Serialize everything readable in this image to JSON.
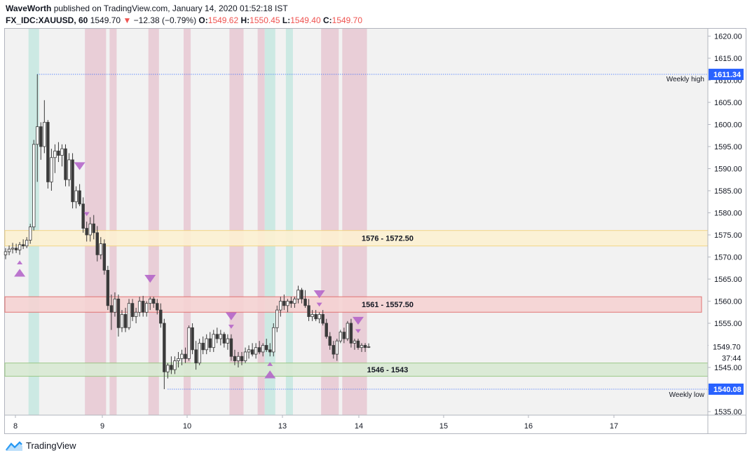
{
  "header": {
    "author": "WaveWorth",
    "published_text": "published on TradingView.com, January 14, 2020 01:52:18 IST",
    "symbol": "FX_IDC:XAUUSD, 60",
    "last_price": "1549.70",
    "change_arrow": "▼",
    "change": "−12.38 (−0.79%)",
    "o_label": "O:",
    "o_value": "1549.62",
    "h_label": "H:",
    "h_value": "1550.45",
    "l_label": "L:",
    "l_value": "1549.40",
    "c_label": "C:",
    "c_value": "1549.70"
  },
  "footer": {
    "brand": "TradingView"
  },
  "colors": {
    "candle": "#3a3a3a",
    "pink_band": "#e8c8d2",
    "teal_band": "#c6e8e0",
    "zone_yellow_fill": "#fdf1d2",
    "zone_yellow_border": "#f3d27a",
    "zone_red_fill": "#f6d3d3",
    "zone_red_border": "#e06666",
    "zone_green_fill": "#d9ead3",
    "zone_green_border": "#93c47d",
    "marker": "#b25fc8",
    "level_line": "#2962ff",
    "price_badge_blue": "#2962ff",
    "price_badge_dark": "#131722"
  },
  "chart_data": {
    "type": "candlestick",
    "symbol": "FX_IDC:XAUUSD",
    "interval": "60",
    "x_tick_labels": [
      "8",
      "9",
      "10",
      "13",
      "14",
      "15",
      "16",
      "17"
    ],
    "y_ticks": [
      1535,
      1540,
      1545,
      1550,
      1555,
      1560,
      1565,
      1570,
      1575,
      1580,
      1585,
      1590,
      1595,
      1600,
      1605,
      1610,
      1615,
      1620
    ],
    "y_tick_labels": [
      "1535.00",
      "",
      "1545.00",
      "",
      "1555.00",
      "1560.00",
      "1565.00",
      "1570.00",
      "1575.00",
      "1580.00",
      "1585.00",
      "1590.00",
      "1595.00",
      "1600.00",
      "1605.00",
      "1610.00",
      "1615.00",
      "1620.00"
    ],
    "ylim": [
      1532.5,
      1620.5
    ],
    "zones": [
      {
        "label": "1576 - 1572.50",
        "top": 1576,
        "bottom": 1572.5,
        "style": "yellow"
      },
      {
        "label": "1561 - 1557.50",
        "top": 1561,
        "bottom": 1557.5,
        "style": "red"
      },
      {
        "label": "1546 - 1543",
        "top": 1546,
        "bottom": 1543,
        "style": "green"
      }
    ],
    "levels": [
      {
        "label": "Weekly high",
        "value": 1611.34,
        "badge": "1611.34"
      },
      {
        "label": "Weekly low",
        "value": 1540.08,
        "badge": "1540.08"
      }
    ],
    "last_price": {
      "value": 1549.7,
      "badge": "1549.70",
      "countdown": "37:44"
    },
    "candles": [
      {
        "o": 1570.5,
        "h": 1572.0,
        "l": 1569.5,
        "c": 1571.2
      },
      {
        "o": 1571.2,
        "h": 1572.6,
        "l": 1570.4,
        "c": 1571.8
      },
      {
        "o": 1571.8,
        "h": 1573.2,
        "l": 1570.8,
        "c": 1572.0
      },
      {
        "o": 1572.0,
        "h": 1573.0,
        "l": 1570.9,
        "c": 1571.6
      },
      {
        "o": 1571.6,
        "h": 1573.4,
        "l": 1570.5,
        "c": 1572.8
      },
      {
        "o": 1572.8,
        "h": 1574.0,
        "l": 1571.8,
        "c": 1572.5
      },
      {
        "o": 1572.5,
        "h": 1574.5,
        "l": 1572.0,
        "c": 1573.8
      },
      {
        "o": 1573.8,
        "h": 1577.5,
        "l": 1573.0,
        "c": 1576.8
      },
      {
        "o": 1576.8,
        "h": 1596.5,
        "l": 1576.0,
        "c": 1595.5
      },
      {
        "o": 1595.5,
        "h": 1611.34,
        "l": 1587.0,
        "c": 1599.5
      },
      {
        "o": 1599.5,
        "h": 1600.5,
        "l": 1592.0,
        "c": 1595.0
      },
      {
        "o": 1595.0,
        "h": 1605.5,
        "l": 1593.5,
        "c": 1600.5
      },
      {
        "o": 1600.5,
        "h": 1601.0,
        "l": 1585.5,
        "c": 1587.0
      },
      {
        "o": 1587.0,
        "h": 1594.5,
        "l": 1585.0,
        "c": 1592.5
      },
      {
        "o": 1592.5,
        "h": 1595.5,
        "l": 1589.0,
        "c": 1594.0
      },
      {
        "o": 1594.0,
        "h": 1596.0,
        "l": 1591.5,
        "c": 1593.0
      },
      {
        "o": 1593.0,
        "h": 1595.5,
        "l": 1590.5,
        "c": 1594.5
      },
      {
        "o": 1594.5,
        "h": 1595.5,
        "l": 1586.0,
        "c": 1587.5
      },
      {
        "o": 1587.5,
        "h": 1593.5,
        "l": 1586.0,
        "c": 1592.0
      },
      {
        "o": 1592.0,
        "h": 1593.5,
        "l": 1581.0,
        "c": 1582.5
      },
      {
        "o": 1582.5,
        "h": 1586.0,
        "l": 1581.0,
        "c": 1585.0
      },
      {
        "o": 1585.0,
        "h": 1586.5,
        "l": 1581.5,
        "c": 1582.0
      },
      {
        "o": 1582.0,
        "h": 1583.5,
        "l": 1575.5,
        "c": 1576.5
      },
      {
        "o": 1576.5,
        "h": 1578.0,
        "l": 1573.5,
        "c": 1575.0
      },
      {
        "o": 1575.0,
        "h": 1579.0,
        "l": 1573.5,
        "c": 1577.5
      },
      {
        "o": 1577.5,
        "h": 1579.5,
        "l": 1574.0,
        "c": 1575.5
      },
      {
        "o": 1575.5,
        "h": 1577.0,
        "l": 1569.0,
        "c": 1570.5
      },
      {
        "o": 1570.5,
        "h": 1574.5,
        "l": 1569.5,
        "c": 1573.0
      },
      {
        "o": 1573.0,
        "h": 1574.0,
        "l": 1566.0,
        "c": 1567.0
      },
      {
        "o": 1567.0,
        "h": 1568.0,
        "l": 1558.0,
        "c": 1559.0
      },
      {
        "o": 1559.0,
        "h": 1561.5,
        "l": 1553.5,
        "c": 1557.5
      },
      {
        "o": 1557.5,
        "h": 1562.0,
        "l": 1556.5,
        "c": 1560.5
      },
      {
        "o": 1560.5,
        "h": 1561.5,
        "l": 1552.0,
        "c": 1554.0
      },
      {
        "o": 1554.0,
        "h": 1558.0,
        "l": 1553.0,
        "c": 1557.0
      },
      {
        "o": 1557.0,
        "h": 1558.5,
        "l": 1553.0,
        "c": 1554.0
      },
      {
        "o": 1554.0,
        "h": 1560.5,
        "l": 1553.5,
        "c": 1559.5
      },
      {
        "o": 1559.5,
        "h": 1560.5,
        "l": 1555.5,
        "c": 1556.5
      },
      {
        "o": 1556.5,
        "h": 1558.5,
        "l": 1555.0,
        "c": 1557.5
      },
      {
        "o": 1557.5,
        "h": 1561.0,
        "l": 1556.5,
        "c": 1560.0
      },
      {
        "o": 1560.0,
        "h": 1561.2,
        "l": 1556.5,
        "c": 1557.5
      },
      {
        "o": 1557.5,
        "h": 1560.0,
        "l": 1556.5,
        "c": 1559.5
      },
      {
        "o": 1559.5,
        "h": 1561.0,
        "l": 1558.0,
        "c": 1560.5
      },
      {
        "o": 1560.5,
        "h": 1561.0,
        "l": 1558.5,
        "c": 1559.5
      },
      {
        "o": 1559.5,
        "h": 1560.5,
        "l": 1557.0,
        "c": 1558.0
      },
      {
        "o": 1558.0,
        "h": 1559.5,
        "l": 1554.0,
        "c": 1555.0
      },
      {
        "o": 1555.0,
        "h": 1556.0,
        "l": 1540.08,
        "c": 1544.0
      },
      {
        "o": 1544.0,
        "h": 1546.0,
        "l": 1542.5,
        "c": 1545.5
      },
      {
        "o": 1545.5,
        "h": 1547.5,
        "l": 1543.5,
        "c": 1544.5
      },
      {
        "o": 1544.5,
        "h": 1547.5,
        "l": 1543.5,
        "c": 1546.5
      },
      {
        "o": 1546.5,
        "h": 1548.5,
        "l": 1545.0,
        "c": 1547.0
      },
      {
        "o": 1547.0,
        "h": 1549.0,
        "l": 1545.5,
        "c": 1548.0
      },
      {
        "o": 1548.0,
        "h": 1549.5,
        "l": 1546.0,
        "c": 1547.0
      },
      {
        "o": 1547.0,
        "h": 1554.5,
        "l": 1546.5,
        "c": 1554.0
      },
      {
        "o": 1554.0,
        "h": 1555.0,
        "l": 1548.0,
        "c": 1549.0
      },
      {
        "o": 1549.0,
        "h": 1551.0,
        "l": 1544.5,
        "c": 1546.0
      },
      {
        "o": 1546.0,
        "h": 1551.5,
        "l": 1545.5,
        "c": 1550.5
      },
      {
        "o": 1550.5,
        "h": 1552.0,
        "l": 1548.0,
        "c": 1549.0
      },
      {
        "o": 1549.0,
        "h": 1552.5,
        "l": 1548.0,
        "c": 1551.5
      },
      {
        "o": 1551.5,
        "h": 1553.0,
        "l": 1548.5,
        "c": 1549.5
      },
      {
        "o": 1549.5,
        "h": 1553.5,
        "l": 1548.5,
        "c": 1552.5
      },
      {
        "o": 1552.5,
        "h": 1554.0,
        "l": 1550.5,
        "c": 1551.5
      },
      {
        "o": 1551.5,
        "h": 1553.5,
        "l": 1550.0,
        "c": 1552.5
      },
      {
        "o": 1552.5,
        "h": 1553.0,
        "l": 1549.5,
        "c": 1550.5
      },
      {
        "o": 1550.5,
        "h": 1552.5,
        "l": 1549.0,
        "c": 1551.5
      },
      {
        "o": 1551.5,
        "h": 1552.5,
        "l": 1546.5,
        "c": 1547.5
      },
      {
        "o": 1547.5,
        "h": 1549.0,
        "l": 1545.5,
        "c": 1546.5
      },
      {
        "o": 1546.5,
        "h": 1548.5,
        "l": 1545.0,
        "c": 1547.5
      },
      {
        "o": 1547.5,
        "h": 1548.5,
        "l": 1545.5,
        "c": 1546.5
      },
      {
        "o": 1546.5,
        "h": 1549.5,
        "l": 1546.0,
        "c": 1548.5
      },
      {
        "o": 1548.5,
        "h": 1550.0,
        "l": 1547.0,
        "c": 1549.0
      },
      {
        "o": 1549.0,
        "h": 1550.5,
        "l": 1547.5,
        "c": 1548.0
      },
      {
        "o": 1548.0,
        "h": 1550.5,
        "l": 1547.0,
        "c": 1549.5
      },
      {
        "o": 1549.5,
        "h": 1551.0,
        "l": 1548.0,
        "c": 1548.5
      },
      {
        "o": 1548.5,
        "h": 1550.5,
        "l": 1547.5,
        "c": 1550.0
      },
      {
        "o": 1550.0,
        "h": 1551.5,
        "l": 1548.5,
        "c": 1549.0
      },
      {
        "o": 1549.0,
        "h": 1550.5,
        "l": 1547.5,
        "c": 1548.5
      },
      {
        "o": 1548.5,
        "h": 1555.0,
        "l": 1547.5,
        "c": 1554.0
      },
      {
        "o": 1554.0,
        "h": 1559.0,
        "l": 1553.0,
        "c": 1558.0
      },
      {
        "o": 1558.0,
        "h": 1561.0,
        "l": 1556.5,
        "c": 1560.0
      },
      {
        "o": 1560.0,
        "h": 1561.5,
        "l": 1558.0,
        "c": 1559.0
      },
      {
        "o": 1559.0,
        "h": 1560.5,
        "l": 1557.5,
        "c": 1560.0
      },
      {
        "o": 1560.0,
        "h": 1561.0,
        "l": 1558.5,
        "c": 1559.5
      },
      {
        "o": 1559.5,
        "h": 1561.0,
        "l": 1558.5,
        "c": 1560.5
      },
      {
        "o": 1560.5,
        "h": 1563.5,
        "l": 1559.5,
        "c": 1562.5
      },
      {
        "o": 1562.5,
        "h": 1563.0,
        "l": 1559.5,
        "c": 1560.5
      },
      {
        "o": 1560.5,
        "h": 1562.5,
        "l": 1558.5,
        "c": 1559.0
      },
      {
        "o": 1559.0,
        "h": 1560.5,
        "l": 1555.5,
        "c": 1556.5
      },
      {
        "o": 1556.5,
        "h": 1558.0,
        "l": 1555.5,
        "c": 1557.0
      },
      {
        "o": 1557.0,
        "h": 1558.0,
        "l": 1555.5,
        "c": 1556.0
      },
      {
        "o": 1556.0,
        "h": 1557.5,
        "l": 1555.0,
        "c": 1557.0
      },
      {
        "o": 1557.0,
        "h": 1558.0,
        "l": 1554.5,
        "c": 1555.0
      },
      {
        "o": 1555.0,
        "h": 1556.0,
        "l": 1551.5,
        "c": 1552.0
      },
      {
        "o": 1552.0,
        "h": 1553.0,
        "l": 1549.0,
        "c": 1550.0
      },
      {
        "o": 1550.0,
        "h": 1551.0,
        "l": 1547.0,
        "c": 1548.0
      },
      {
        "o": 1548.0,
        "h": 1551.5,
        "l": 1546.5,
        "c": 1551.0
      },
      {
        "o": 1551.0,
        "h": 1553.5,
        "l": 1550.5,
        "c": 1553.0
      },
      {
        "o": 1553.0,
        "h": 1554.0,
        "l": 1550.5,
        "c": 1551.5
      },
      {
        "o": 1551.5,
        "h": 1555.5,
        "l": 1551.0,
        "c": 1555.0
      },
      {
        "o": 1555.0,
        "h": 1556.0,
        "l": 1549.5,
        "c": 1550.5
      },
      {
        "o": 1550.5,
        "h": 1551.5,
        "l": 1549.0,
        "c": 1551.0
      },
      {
        "o": 1551.0,
        "h": 1551.5,
        "l": 1549.0,
        "c": 1549.5
      },
      {
        "o": 1549.5,
        "h": 1550.5,
        "l": 1548.5,
        "c": 1550.0
      },
      {
        "o": 1550.0,
        "h": 1550.5,
        "l": 1548.5,
        "c": 1549.5
      },
      {
        "o": 1549.62,
        "h": 1550.45,
        "l": 1549.4,
        "c": 1549.7
      }
    ],
    "markers": [
      {
        "candle": 4,
        "dir": "up",
        "size": "large"
      },
      {
        "candle": 4,
        "dir": "up",
        "size": "small"
      },
      {
        "candle": 21,
        "dir": "down",
        "size": "large"
      },
      {
        "candle": 23,
        "dir": "down",
        "size": "small"
      },
      {
        "candle": 41,
        "dir": "down",
        "size": "large"
      },
      {
        "candle": 64,
        "dir": "down",
        "size": "large"
      },
      {
        "candle": 64,
        "dir": "down",
        "size": "small"
      },
      {
        "candle": 75,
        "dir": "up",
        "size": "large"
      },
      {
        "candle": 75,
        "dir": "up",
        "size": "small"
      },
      {
        "candle": 89,
        "dir": "down",
        "size": "large"
      },
      {
        "candle": 89,
        "dir": "down",
        "size": "small"
      },
      {
        "candle": 100,
        "dir": "down",
        "size": "large"
      },
      {
        "candle": 100,
        "dir": "down",
        "size": "small"
      }
    ],
    "session_bands": [
      {
        "start": 7,
        "end": 9,
        "color": "teal"
      },
      {
        "start": 23,
        "end": 28,
        "color": "pink"
      },
      {
        "start": 30,
        "end": 31,
        "color": "pink"
      },
      {
        "start": 41,
        "end": 43,
        "color": "pink"
      },
      {
        "start": 51,
        "end": 52,
        "color": "pink"
      },
      {
        "start": 64,
        "end": 67,
        "color": "pink"
      },
      {
        "start": 72,
        "end": 73,
        "color": "pink"
      },
      {
        "start": 74,
        "end": 76,
        "color": "teal"
      },
      {
        "start": 80,
        "end": 81,
        "color": "teal"
      },
      {
        "start": 90,
        "end": 94,
        "color": "pink"
      },
      {
        "start": 96,
        "end": 102,
        "color": "pink"
      }
    ]
  }
}
